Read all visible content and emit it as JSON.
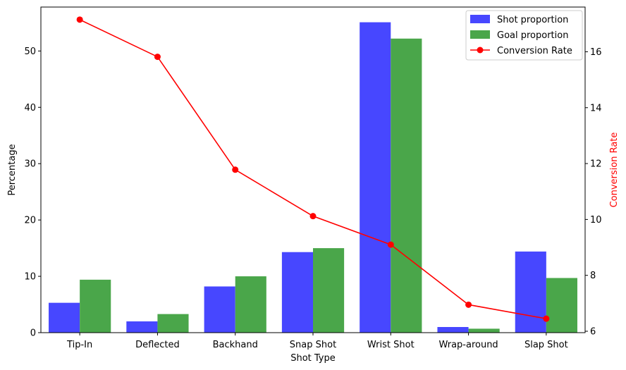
{
  "chart_data": {
    "type": "bar",
    "categories": [
      "Tip-In",
      "Deflected",
      "Backhand",
      "Snap Shot",
      "Wrist Shot",
      "Wrap-around",
      "Slap Shot"
    ],
    "series": [
      {
        "name": "Shot proportion",
        "type": "bar",
        "axis": "left",
        "color": "#4747ff",
        "values": [
          5.3,
          2.0,
          8.2,
          14.3,
          55.1,
          1.0,
          14.4
        ]
      },
      {
        "name": "Goal proportion",
        "type": "bar",
        "axis": "left",
        "color": "#4aa64a",
        "values": [
          9.4,
          3.3,
          10.0,
          15.0,
          52.2,
          0.7,
          9.7
        ]
      },
      {
        "name": "Conversion Rate",
        "type": "line",
        "axis": "right",
        "color": "#ff0000",
        "values": [
          17.15,
          15.82,
          11.78,
          10.12,
          9.1,
          6.95,
          6.45
        ]
      }
    ],
    "xlabel": "Shot Type",
    "ylabel": "Percentage",
    "ylabel_right": "Conversion Rate",
    "ylim": [
      0,
      57.8
    ],
    "ylim_right": [
      5.95,
      17.6
    ],
    "yticks": [
      "0",
      "10",
      "20",
      "30",
      "40",
      "50"
    ],
    "yticks_right": [
      "6",
      "8",
      "10",
      "12",
      "14",
      "16"
    ],
    "legend_position": "top-right",
    "grid": false
  }
}
